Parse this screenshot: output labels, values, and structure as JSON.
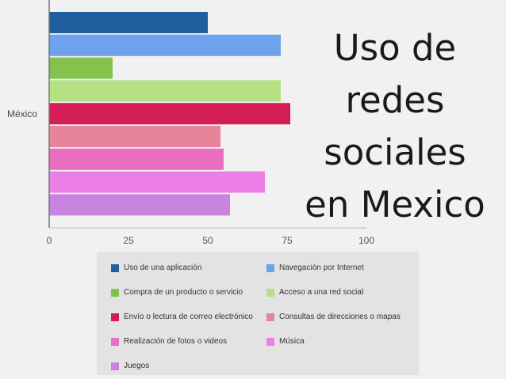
{
  "title_lines": [
    "Uso de",
    "redes",
    "sociales",
    "en Mexico"
  ],
  "chart_data": {
    "type": "bar",
    "orientation": "horizontal",
    "category": "México",
    "x_ticks": [
      "0",
      "25",
      "50",
      "75",
      "100"
    ],
    "xlim": [
      0,
      100
    ],
    "grid": false,
    "legend_placement": "bottom",
    "series": [
      {
        "name": "Uso de una aplicación",
        "value": 50,
        "color": "#1f5fa0"
      },
      {
        "name": "Navegación por Internet",
        "value": 73,
        "color": "#6fa2ec"
      },
      {
        "name": "Compra de un producto o servicio",
        "value": 20,
        "color": "#83c34d"
      },
      {
        "name": "Acceso a una red social",
        "value": 73,
        "color": "#b5e083"
      },
      {
        "name": "Envío o lectura de correo electrónico",
        "value": 76,
        "color": "#d41d54"
      },
      {
        "name": "Consultas de direcciones o mapas",
        "value": 54,
        "color": "#e68599"
      },
      {
        "name": "Realización de fotos o videos",
        "value": 55,
        "color": "#ea6ebf"
      },
      {
        "name": "Música",
        "value": 68,
        "color": "#eb7fe7"
      },
      {
        "name": "Juegos",
        "value": 57,
        "color": "#c785e0"
      }
    ]
  }
}
